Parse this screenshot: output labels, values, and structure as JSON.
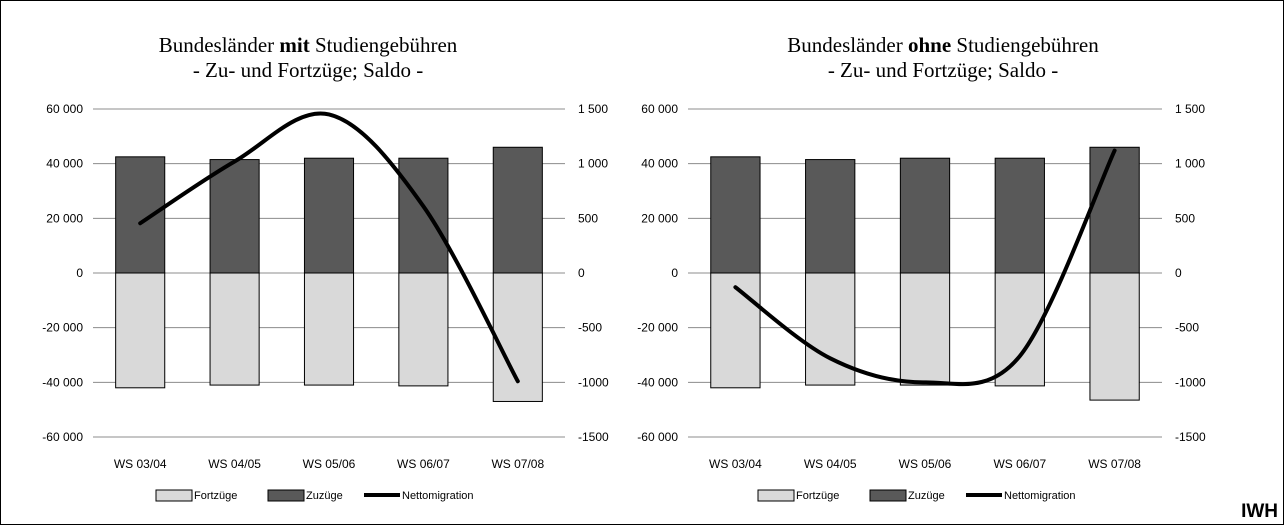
{
  "brand": "IWH",
  "colors": {
    "fortzuege": "#d9d9d9",
    "zuzuege": "#595959",
    "netto": "#000000",
    "grid": "#8c8c8c",
    "border": "#000000"
  },
  "chart_data": [
    {
      "type": "bar",
      "title_prefix": "Bundesländer ",
      "title_bold": "mit",
      "title_suffix": " Studiengebühren",
      "subtitle": "- Zu- und Fortzüge; Saldo -",
      "categories": [
        "WS 03/04",
        "WS 04/05",
        "WS 05/06",
        "WS 06/07",
        "WS 07/08"
      ],
      "ylim": [
        -60000,
        60000
      ],
      "y_ticks": [
        60000,
        40000,
        20000,
        0,
        -20000,
        -40000,
        -60000
      ],
      "y_tick_labels": [
        "60 000",
        "40 000",
        "20 000",
        "0",
        "-20 000",
        "-40 000",
        "-60 000"
      ],
      "y2lim": [
        -1500,
        1500
      ],
      "y2_ticks": [
        1500,
        1000,
        500,
        0,
        -500,
        -1000,
        -1500
      ],
      "y2_tick_labels": [
        "1 500",
        "1 000",
        "500",
        "0",
        "-500",
        "-1000",
        "-1500"
      ],
      "series": [
        {
          "name": "Fortzüge",
          "values": [
            -42000,
            -41000,
            -41000,
            -41300,
            -47000
          ],
          "axis": "left",
          "kind": "bar"
        },
        {
          "name": "Zuzüge",
          "values": [
            42500,
            41500,
            42000,
            42000,
            46000
          ],
          "axis": "left",
          "kind": "bar"
        },
        {
          "name": "Nettomigration",
          "values": [
            455,
            1020,
            1450,
            610,
            -990
          ],
          "axis": "right",
          "kind": "line"
        }
      ],
      "legend": [
        "Fortzüge",
        "Zuzüge",
        "Nettomigration"
      ],
      "legend_position": "bottom",
      "grid": true
    },
    {
      "type": "bar",
      "title_prefix": "Bundesländer ",
      "title_bold": "ohne",
      "title_suffix": " Studiengebühren",
      "subtitle": "- Zu- und Fortzüge; Saldo -",
      "categories": [
        "WS 03/04",
        "WS 04/05",
        "WS 05/06",
        "WS 06/07",
        "WS 07/08"
      ],
      "ylim": [
        -60000,
        60000
      ],
      "y_ticks": [
        60000,
        40000,
        20000,
        0,
        -20000,
        -40000,
        -60000
      ],
      "y_tick_labels": [
        "60 000",
        "40 000",
        "20 000",
        "0",
        "-20 000",
        "-40 000",
        "-60 000"
      ],
      "y2lim": [
        -1500,
        1500
      ],
      "y2_ticks": [
        1500,
        1000,
        500,
        0,
        -500,
        -1000,
        -1500
      ],
      "y2_tick_labels": [
        "1 500",
        "1 000",
        "500",
        "0",
        "-500",
        "-1000",
        "-1500"
      ],
      "series": [
        {
          "name": "Fortzüge",
          "values": [
            -42000,
            -41000,
            -41000,
            -41300,
            -46500
          ],
          "axis": "left",
          "kind": "bar"
        },
        {
          "name": "Zuzüge",
          "values": [
            42500,
            41500,
            42000,
            42000,
            46000
          ],
          "axis": "left",
          "kind": "bar"
        },
        {
          "name": "Nettomigration",
          "values": [
            -130,
            -780,
            -1000,
            -760,
            1120
          ],
          "axis": "right",
          "kind": "line"
        }
      ],
      "legend": [
        "Fortzüge",
        "Zuzüge",
        "Nettomigration"
      ],
      "legend_position": "bottom",
      "grid": true
    }
  ]
}
